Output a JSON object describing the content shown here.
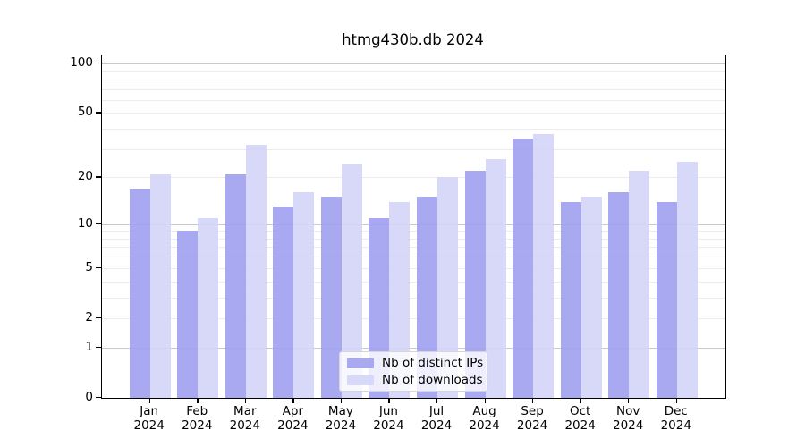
{
  "chart_data": {
    "type": "bar",
    "title": "htmg430b.db 2024",
    "year_label": "2024",
    "categories": [
      "Jan",
      "Feb",
      "Mar",
      "Apr",
      "May",
      "Jun",
      "Jul",
      "Aug",
      "Sep",
      "Oct",
      "Nov",
      "Dec"
    ],
    "series": [
      {
        "name": "Nb of distinct IPs",
        "color": "#a0a0ef",
        "values": [
          17,
          9,
          21,
          13,
          15,
          11,
          15,
          22,
          35,
          14,
          16,
          14
        ]
      },
      {
        "name": "Nb of downloads",
        "color": "#d4d4f8",
        "values": [
          21,
          11,
          32,
          16,
          24,
          14,
          20,
          26,
          37,
          15,
          22,
          25
        ]
      }
    ],
    "yscale": "log1p",
    "ylim": [
      0,
      110
    ],
    "yticks": [
      100,
      50,
      20,
      10,
      5,
      2,
      1,
      0
    ],
    "major_gridlines": [
      1,
      10,
      100
    ],
    "minor_gridlines": [
      2,
      3,
      4,
      5,
      6,
      7,
      8,
      9,
      20,
      30,
      40,
      50,
      60,
      70,
      80,
      90
    ],
    "grid": true,
    "legend_position": "lower-center-inside"
  },
  "colors": {
    "background": "#ffffff",
    "axis": "#000000",
    "major_grid": "#c9c9c9",
    "minor_grid": "#ececec",
    "legend_border": "#d5d5d5"
  }
}
